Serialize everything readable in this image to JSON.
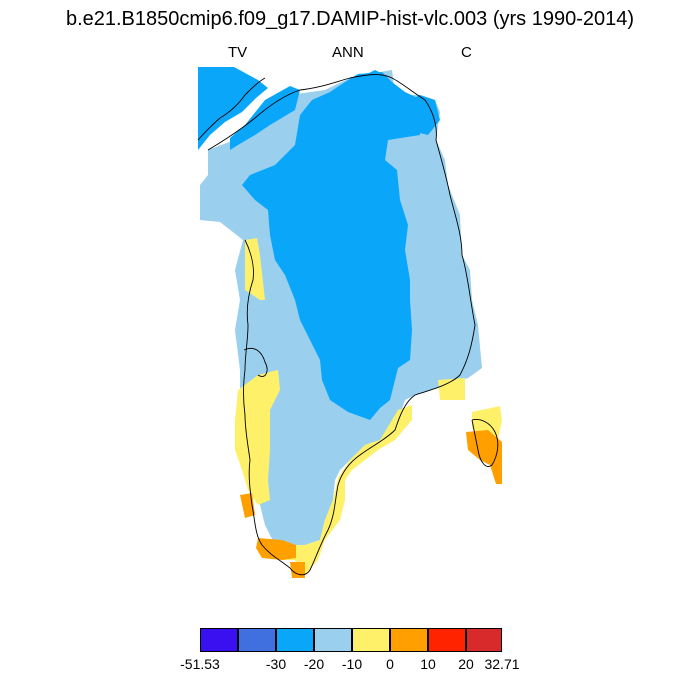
{
  "title": "b.e21.B1850cmip6.f09_g17.DAMIP-hist-vlc.003 (yrs 1990-2014)",
  "left_label": "TV",
  "center_label": "ANN",
  "right_label": "C",
  "colors": {
    "c_dark_blue": "#3a10f0",
    "c_blue": "#4070e0",
    "c_mid_blue": "#0aa6fa",
    "c_light_blue": "#9ad0ee",
    "c_yellow": "#fff06a",
    "c_orange": "#ff9f00",
    "c_red": "#ff2300",
    "c_dark_red": "#d82a2a",
    "coastline": "#000000"
  },
  "colorbar": {
    "colors": [
      "#3a10f0",
      "#4070e0",
      "#0aa6fa",
      "#9ad0ee",
      "#fff06a",
      "#ff9f00",
      "#ff2300",
      "#d82a2a"
    ],
    "labels": [
      "-51.53",
      "-30",
      "-20",
      "-10",
      "0",
      "10",
      "20",
      "32.71"
    ]
  }
}
